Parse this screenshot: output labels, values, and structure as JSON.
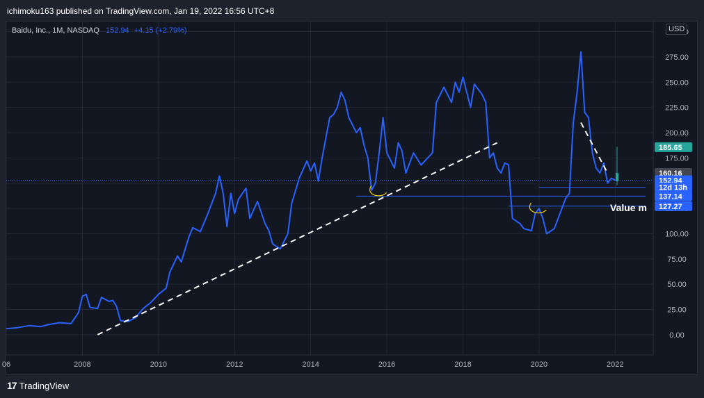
{
  "header": {
    "published": "ichimoku163 published on TradingView.com, Jan 19, 2022 16:56 UTC+8",
    "symbol": "Baidu, Inc., 1M, NASDAQ",
    "last": "152.94",
    "change": "+4.15 (+2.79%)"
  },
  "currency": "USD",
  "footer": {
    "brand": "TradingView",
    "logo_mark": "17"
  },
  "annotation_text": "Value m",
  "price_labels": [
    {
      "text": "185.65",
      "color": "#26a69a"
    },
    {
      "text": "160.16",
      "color": "#434651"
    },
    {
      "text": "152.94",
      "color": "#2962ff"
    },
    {
      "text": "12d 13h",
      "color": "#2962ff"
    },
    {
      "text": "137.14",
      "color": "#2962ff"
    },
    {
      "text": "127.27",
      "color": "#2962ff"
    }
  ],
  "chart_data": {
    "type": "line",
    "ylim": [
      -20,
      310
    ],
    "xlim": [
      2006.0,
      2023.0
    ],
    "y_ticks": [
      "0.00",
      "25.00",
      "50.00",
      "75.00",
      "100.00",
      "125.00",
      "150.00",
      "175.00",
      "200.00",
      "225.00",
      "250.00",
      "275.00",
      "300.00"
    ],
    "x_ticks": [
      "06",
      "2008",
      "2010",
      "2012",
      "2014",
      "2016",
      "2018",
      "2020",
      "2022"
    ],
    "grid": true,
    "series": [
      {
        "color": "#2962ff",
        "points": [
          [
            2006.0,
            6
          ],
          [
            2006.3,
            7
          ],
          [
            2006.6,
            9
          ],
          [
            2006.9,
            8
          ],
          [
            2007.1,
            10
          ],
          [
            2007.4,
            12
          ],
          [
            2007.7,
            11
          ],
          [
            2007.9,
            22
          ],
          [
            2008.0,
            38
          ],
          [
            2008.1,
            40
          ],
          [
            2008.2,
            27
          ],
          [
            2008.4,
            26
          ],
          [
            2008.5,
            37
          ],
          [
            2008.7,
            33
          ],
          [
            2008.8,
            34
          ],
          [
            2008.9,
            28
          ],
          [
            2009.0,
            14
          ],
          [
            2009.2,
            13
          ],
          [
            2009.4,
            17
          ],
          [
            2009.6,
            26
          ],
          [
            2009.8,
            32
          ],
          [
            2010.0,
            40
          ],
          [
            2010.2,
            46
          ],
          [
            2010.3,
            62
          ],
          [
            2010.5,
            78
          ],
          [
            2010.6,
            72
          ],
          [
            2010.8,
            97
          ],
          [
            2010.9,
            106
          ],
          [
            2011.1,
            102
          ],
          [
            2011.3,
            120
          ],
          [
            2011.5,
            140
          ],
          [
            2011.6,
            157
          ],
          [
            2011.7,
            140
          ],
          [
            2011.8,
            107
          ],
          [
            2011.9,
            140
          ],
          [
            2012.0,
            120
          ],
          [
            2012.1,
            134
          ],
          [
            2012.3,
            145
          ],
          [
            2012.4,
            115
          ],
          [
            2012.6,
            132
          ],
          [
            2012.8,
            110
          ],
          [
            2012.9,
            103
          ],
          [
            2013.0,
            90
          ],
          [
            2013.2,
            85
          ],
          [
            2013.4,
            100
          ],
          [
            2013.5,
            130
          ],
          [
            2013.7,
            155
          ],
          [
            2013.9,
            172
          ],
          [
            2014.0,
            162
          ],
          [
            2014.1,
            170
          ],
          [
            2014.2,
            152
          ],
          [
            2014.3,
            175
          ],
          [
            2014.4,
            195
          ],
          [
            2014.5,
            215
          ],
          [
            2014.6,
            218
          ],
          [
            2014.7,
            225
          ],
          [
            2014.8,
            240
          ],
          [
            2014.9,
            232
          ],
          [
            2015.0,
            215
          ],
          [
            2015.2,
            200
          ],
          [
            2015.3,
            205
          ],
          [
            2015.4,
            188
          ],
          [
            2015.5,
            175
          ],
          [
            2015.6,
            143
          ],
          [
            2015.7,
            150
          ],
          [
            2015.8,
            180
          ],
          [
            2015.9,
            215
          ],
          [
            2016.0,
            180
          ],
          [
            2016.2,
            165
          ],
          [
            2016.3,
            190
          ],
          [
            2016.4,
            182
          ],
          [
            2016.5,
            160
          ],
          [
            2016.6,
            170
          ],
          [
            2016.7,
            180
          ],
          [
            2016.9,
            168
          ],
          [
            2017.0,
            172
          ],
          [
            2017.2,
            180
          ],
          [
            2017.3,
            230
          ],
          [
            2017.5,
            245
          ],
          [
            2017.7,
            230
          ],
          [
            2017.8,
            250
          ],
          [
            2017.9,
            240
          ],
          [
            2018.0,
            255
          ],
          [
            2018.2,
            225
          ],
          [
            2018.3,
            248
          ],
          [
            2018.5,
            238
          ],
          [
            2018.6,
            230
          ],
          [
            2018.7,
            175
          ],
          [
            2018.8,
            180
          ],
          [
            2018.9,
            165
          ],
          [
            2019.0,
            160
          ],
          [
            2019.1,
            170
          ],
          [
            2019.2,
            168
          ],
          [
            2019.3,
            115
          ],
          [
            2019.5,
            110
          ],
          [
            2019.6,
            105
          ],
          [
            2019.8,
            103
          ],
          [
            2019.9,
            120
          ],
          [
            2020.0,
            125
          ],
          [
            2020.1,
            115
          ],
          [
            2020.2,
            100
          ],
          [
            2020.4,
            105
          ],
          [
            2020.6,
            125
          ],
          [
            2020.7,
            135
          ],
          [
            2020.8,
            140
          ],
          [
            2020.9,
            210
          ],
          [
            2021.0,
            240
          ],
          [
            2021.1,
            280
          ],
          [
            2021.2,
            220
          ],
          [
            2021.3,
            215
          ],
          [
            2021.4,
            180
          ],
          [
            2021.5,
            165
          ],
          [
            2021.6,
            160
          ],
          [
            2021.7,
            170
          ],
          [
            2021.8,
            150
          ],
          [
            2021.9,
            155
          ],
          [
            2022.0,
            152.94
          ]
        ]
      }
    ],
    "horizontal_levels": [
      {
        "y": 137.14,
        "x_start": 2015.2,
        "x_end": 2022.8
      },
      {
        "y": 127.27,
        "x_start": 2019.2,
        "x_end": 2022.8
      },
      {
        "y": 145.9,
        "x_start": 2020.0,
        "x_end": 2022.8
      }
    ],
    "current_price_line": 152.94,
    "trendlines": [
      {
        "x1": 2008.4,
        "y1": 0,
        "x2": 2018.9,
        "y2": 190
      },
      {
        "x1": 2021.1,
        "y1": 210,
        "x2": 2021.8,
        "y2": 160
      }
    ],
    "last_candle": {
      "x": 2022.05,
      "low": 148,
      "high": 186,
      "open": 152,
      "close": 160,
      "color": "#26a69a"
    },
    "markers": [
      {
        "x": 2015.7,
        "y": 142
      },
      {
        "x": 2019.9,
        "y": 125
      }
    ]
  }
}
